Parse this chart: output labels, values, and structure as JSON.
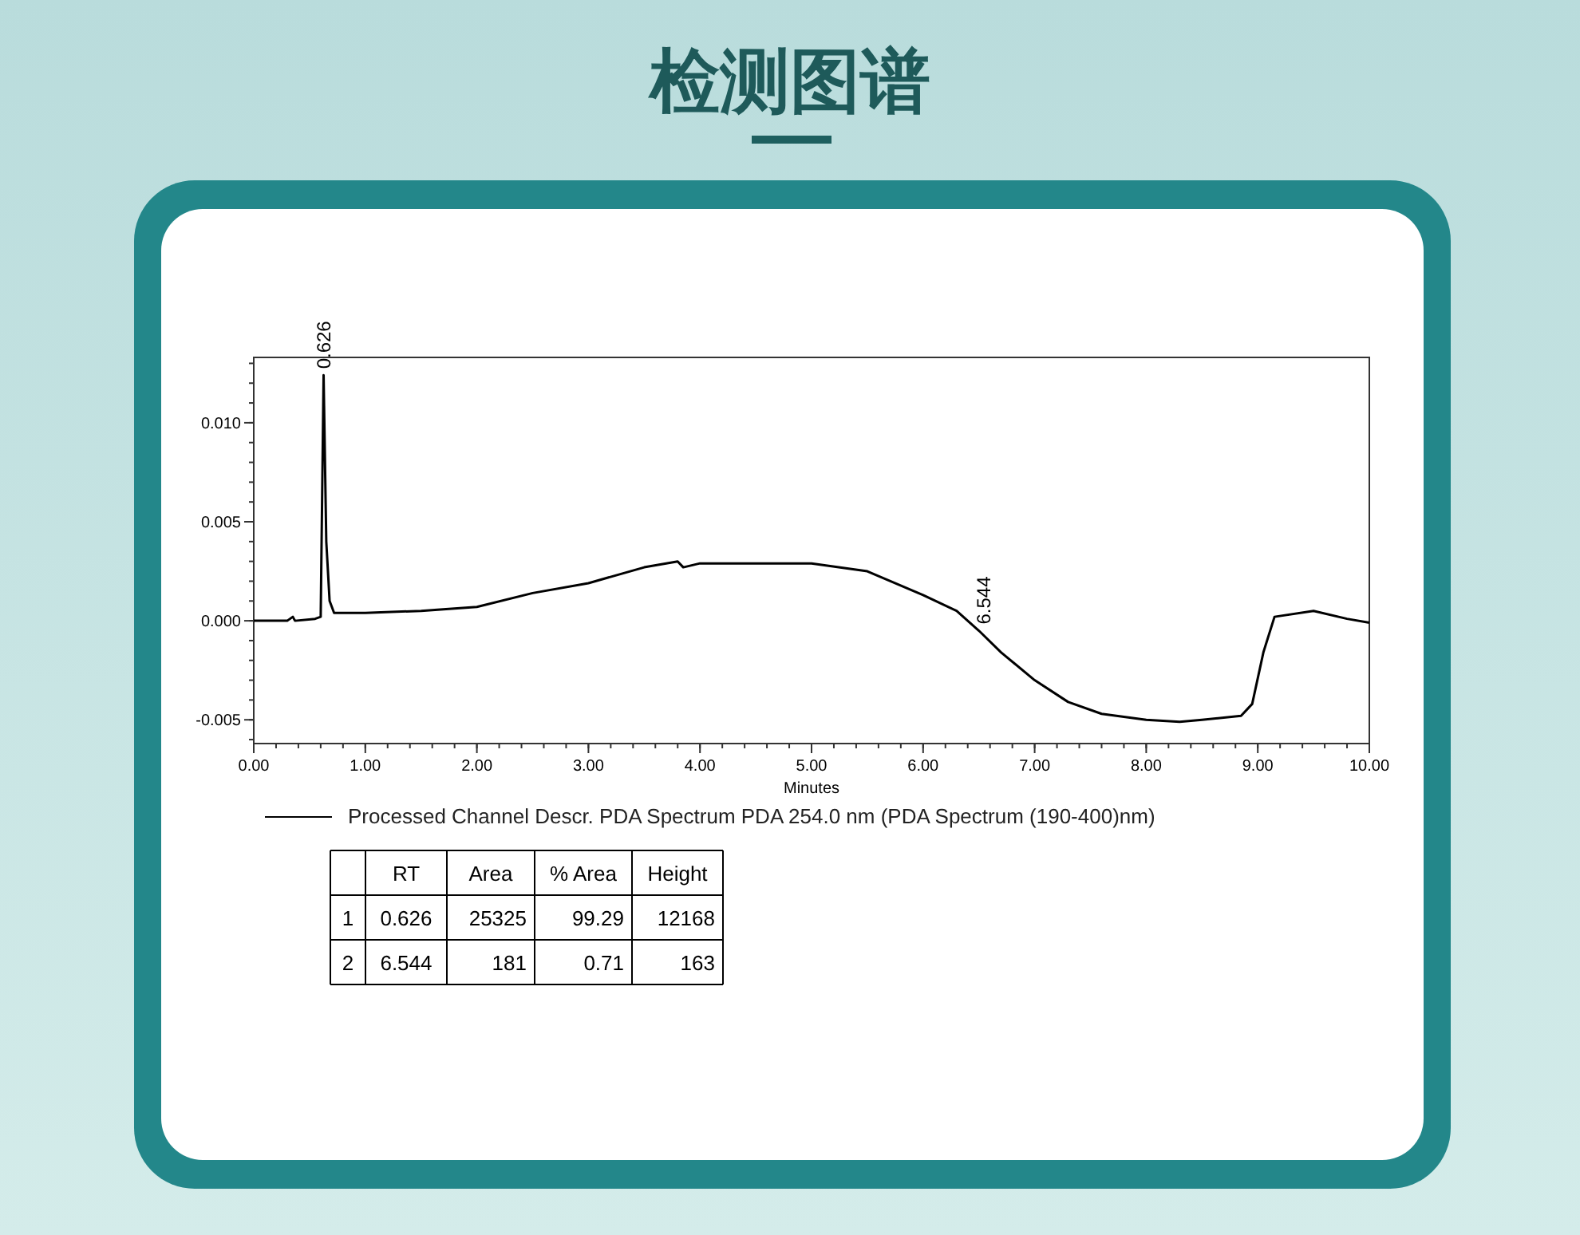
{
  "chart_data": {
    "type": "line",
    "title": "检测图谱",
    "xlabel": "Minutes",
    "xlim": [
      0,
      10
    ],
    "ylim": [
      -0.0062,
      0.0133
    ],
    "xticks": [
      {
        "value": 0,
        "label": "0.00"
      },
      {
        "value": 1,
        "label": "1.00"
      },
      {
        "value": 2,
        "label": "2.00"
      },
      {
        "value": 3,
        "label": "3.00"
      },
      {
        "value": 4,
        "label": "4.00"
      },
      {
        "value": 5,
        "label": "5.00"
      },
      {
        "value": 6,
        "label": "6.00"
      },
      {
        "value": 7,
        "label": "7.00"
      },
      {
        "value": 8,
        "label": "8.00"
      },
      {
        "value": 9,
        "label": "9.00"
      },
      {
        "value": 10,
        "label": "10.00"
      }
    ],
    "yticks": [
      {
        "value": -0.005,
        "label": "-0.005"
      },
      {
        "value": 0,
        "label": "0.000"
      },
      {
        "value": 0.005,
        "label": "0.005"
      },
      {
        "value": 0.01,
        "label": "0.010"
      }
    ],
    "grid": false,
    "legend": "bottom",
    "marker": "none",
    "line_style": "solid",
    "series": [
      {
        "name": "Processed Channel Descr. PDA Spectrum PDA 254.0 nm (PDA Spectrum (190-400)nm)",
        "color": "#000000",
        "x": [
          0,
          0.3,
          0.35,
          0.37,
          0.55,
          0.6,
          0.626,
          0.65,
          0.68,
          0.72,
          1.0,
          1.5,
          2.0,
          2.5,
          3.0,
          3.5,
          3.8,
          3.85,
          4.0,
          4.5,
          5.0,
          5.5,
          6.0,
          6.3,
          6.5,
          6.7,
          7.0,
          7.3,
          7.6,
          8.0,
          8.3,
          8.5,
          8.85,
          8.95,
          9.05,
          9.15,
          9.5,
          9.8,
          10.0
        ],
        "values": [
          0.0,
          0.0,
          0.0002,
          0.0,
          0.0001,
          0.0002,
          0.0124,
          0.004,
          0.001,
          0.0004,
          0.0004,
          0.0005,
          0.0007,
          0.0014,
          0.0019,
          0.0027,
          0.003,
          0.0027,
          0.0029,
          0.0029,
          0.0029,
          0.0025,
          0.0013,
          0.0005,
          -0.0005,
          -0.0016,
          -0.003,
          -0.0041,
          -0.0047,
          -0.005,
          -0.0051,
          -0.005,
          -0.0048,
          -0.0042,
          -0.0016,
          0.0002,
          0.0005,
          0.0001,
          -0.0001
        ]
      }
    ],
    "annotations": [
      {
        "text": "0.626",
        "x": 0.626,
        "y": 0.0124
      },
      {
        "text": "6.544",
        "x": 6.544,
        "y": -0.0005
      },
      "RT",
      "Area",
      "% Area",
      "Height",
      "1",
      "0.626",
      "25325",
      "99.29",
      "12168",
      "2",
      "6.544",
      "181",
      "0.71",
      "163"
    ]
  }
}
